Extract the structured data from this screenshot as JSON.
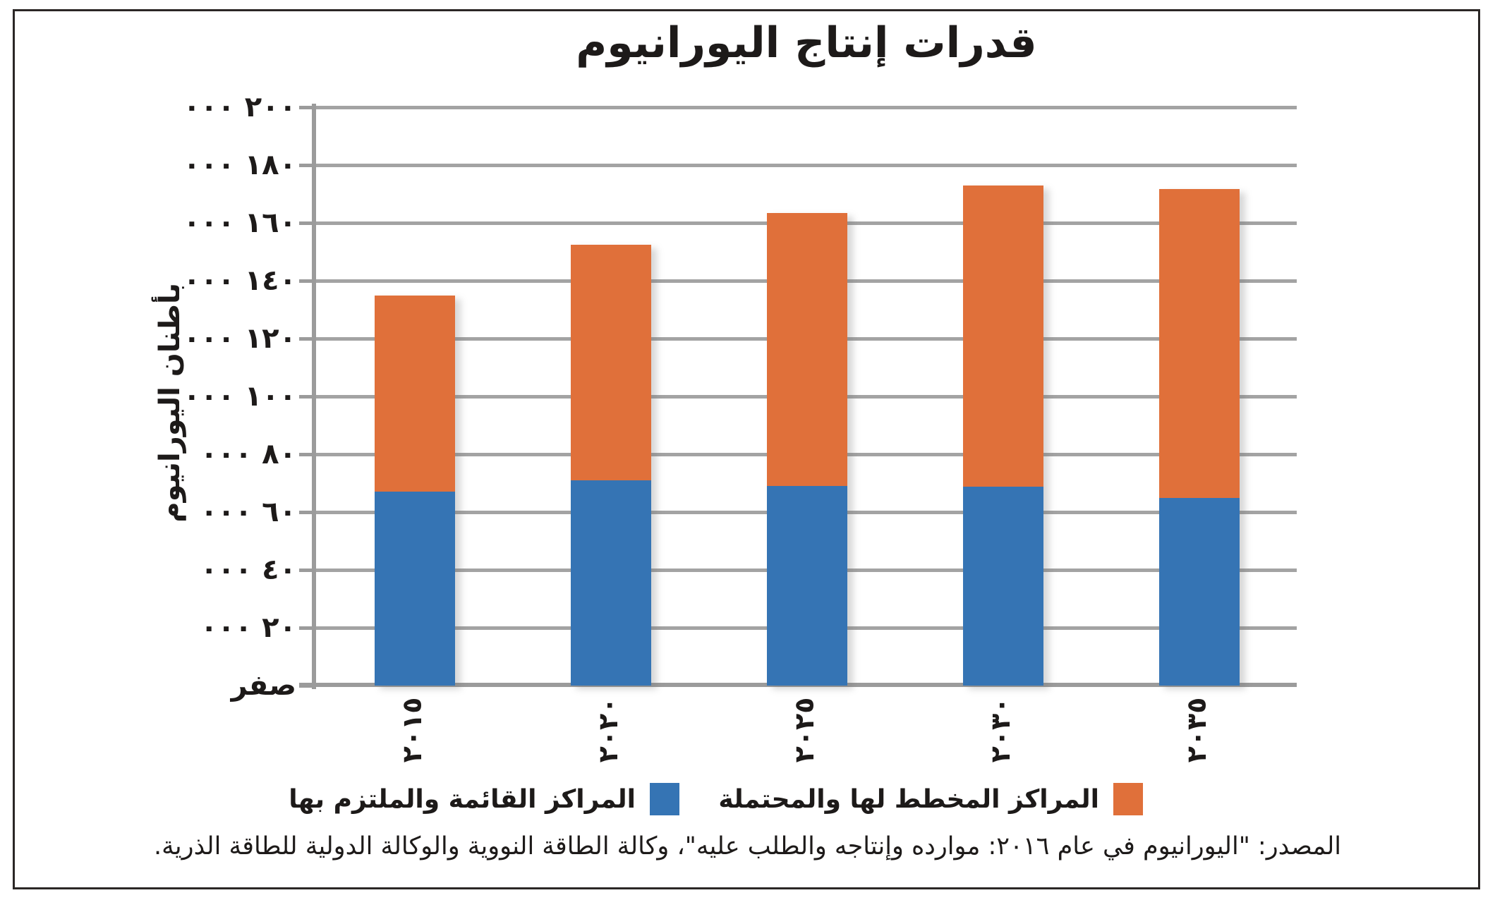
{
  "title": "قدرات إنتاج اليورانيوم",
  "y_axis_title": "بأطنان اليورانيوم",
  "legend": {
    "planned": {
      "label": "المراكز المخطط لها والمحتملة",
      "color": "#e0703a"
    },
    "existing": {
      "label": "المراكز القائمة والملتزم بها",
      "color": "#3574b4"
    }
  },
  "source": "المصدر: \"اليورانيوم في عام ٢٠١٦: موارده وإنتاجه والطلب عليه\"، وكالة الطاقة النووية والوكالة الدولية للطاقة الذرية.",
  "chart_data": {
    "type": "bar",
    "stacked": true,
    "title": "قدرات إنتاج اليورانيوم",
    "categories": [
      "٢٠١٥",
      "٢٠٢٠",
      "٢٠٢٥",
      "٢٠٣٠",
      "٢٠٣٥"
    ],
    "series": [
      {
        "name": "المراكز القائمة والملتزم بها",
        "color": "#3574b4",
        "values": [
          67000,
          70900,
          69100,
          68900,
          64800
        ]
      },
      {
        "name": "المراكز المخطط لها والمحتملة",
        "color": "#e0703a",
        "values": [
          67700,
          81500,
          94300,
          104200,
          106900
        ]
      }
    ],
    "xlabel": "",
    "ylabel": "بأطنان اليورانيوم",
    "ylim": [
      0,
      200000
    ],
    "ytick_step": 20000,
    "ytick_labels": [
      "صفر",
      "٢٠ ٠٠٠",
      "٤٠ ٠٠٠",
      "٦٠ ٠٠٠",
      "٨٠ ٠٠٠",
      "١٠٠ ٠٠٠",
      "١٢٠ ٠٠٠",
      "١٤٠ ٠٠٠",
      "١٦٠ ٠٠٠",
      "١٨٠ ٠٠٠",
      "٢٠٠ ٠٠٠"
    ],
    "grid": true,
    "legend_position": "bottom"
  },
  "colors": {
    "grid": "#a3a3a3",
    "axis": "#9b9b9b",
    "text": "#1d1a19",
    "frame": "#2b2726"
  }
}
